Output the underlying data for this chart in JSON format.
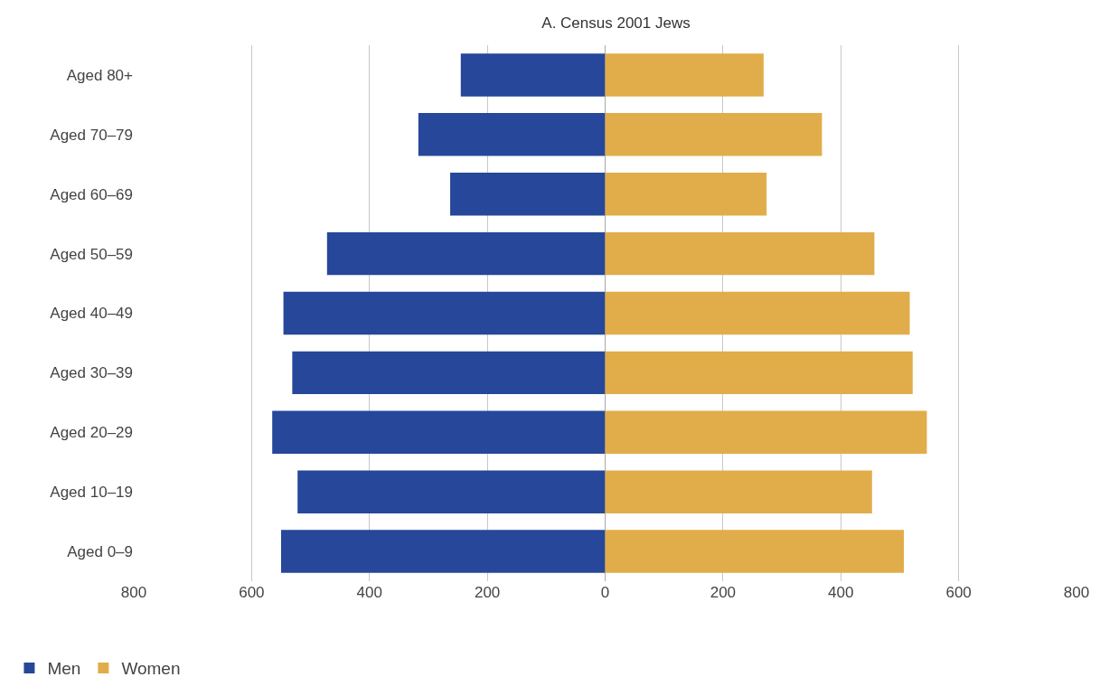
{
  "chart_data": {
    "type": "bar",
    "title": "A. Census 2001 Jews",
    "orientation": "horizontal",
    "categories": [
      "Aged 80+",
      "Aged 70–79",
      "Aged 60–69",
      "Aged 50–59",
      "Aged 40–49",
      "Aged 30–39",
      "Aged 20–29",
      "Aged 10–19",
      "Aged 0–9"
    ],
    "series": [
      {
        "name": "Men",
        "color": "#26479a",
        "values": [
          -245,
          -317,
          -263,
          -472,
          -546,
          -531,
          -565,
          -522,
          -550
        ]
      },
      {
        "name": "Women",
        "color": "#e1ad4a",
        "values": [
          269,
          368,
          274,
          457,
          517,
          522,
          546,
          453,
          507
        ]
      }
    ],
    "xlim": [
      -800,
      800
    ],
    "xticks": [
      {
        "value": -800,
        "label": "800"
      },
      {
        "value": -600,
        "label": "600"
      },
      {
        "value": -400,
        "label": "400"
      },
      {
        "value": -200,
        "label": "200"
      },
      0,
      200,
      400,
      600,
      800
    ],
    "grid": "x",
    "stacked": true,
    "legend": "bottom left"
  }
}
